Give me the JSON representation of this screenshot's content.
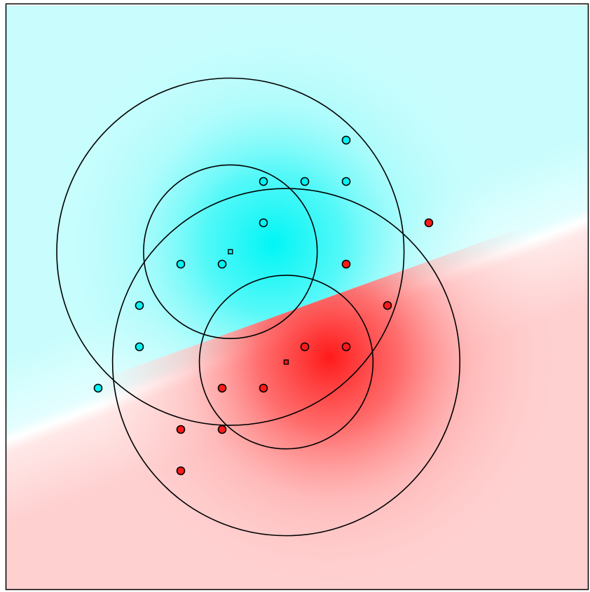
{
  "colors": {
    "class_a": "#00f5f5",
    "class_b": "#ff1a1a",
    "class_a_light": "#c9fdfd",
    "class_b_light": "#ffd0d0",
    "boundary": "#ffffff",
    "stroke": "#000000"
  },
  "chart_data": {
    "type": "scatter",
    "title": "",
    "xlabel": "",
    "ylabel": "",
    "xlim": [
      0,
      14
    ],
    "ylim": [
      0,
      14
    ],
    "grid": false,
    "legend": "none",
    "series": [
      {
        "class": "cyan",
        "points": [
          [
            9,
            11
          ],
          [
            7,
            10
          ],
          [
            8,
            10
          ],
          [
            9,
            10
          ],
          [
            7,
            9
          ],
          [
            5,
            8
          ],
          [
            6,
            8
          ],
          [
            4,
            7
          ],
          [
            4,
            6
          ],
          [
            3,
            5
          ]
        ]
      },
      {
        "class": "red",
        "points": [
          [
            11,
            9
          ],
          [
            9,
            8
          ],
          [
            10,
            7
          ],
          [
            8,
            6
          ],
          [
            9,
            6
          ],
          [
            6,
            5
          ],
          [
            7,
            5
          ],
          [
            5,
            4
          ],
          [
            6,
            4
          ],
          [
            5,
            3
          ]
        ]
      }
    ],
    "centers": [
      {
        "class": "cyan",
        "x": 6.2,
        "y": 8.3,
        "radii": [
          2.1,
          4.2
        ]
      },
      {
        "class": "red",
        "x": 7.55,
        "y": 5.63,
        "radii": [
          2.1,
          4.2
        ]
      }
    ]
  }
}
